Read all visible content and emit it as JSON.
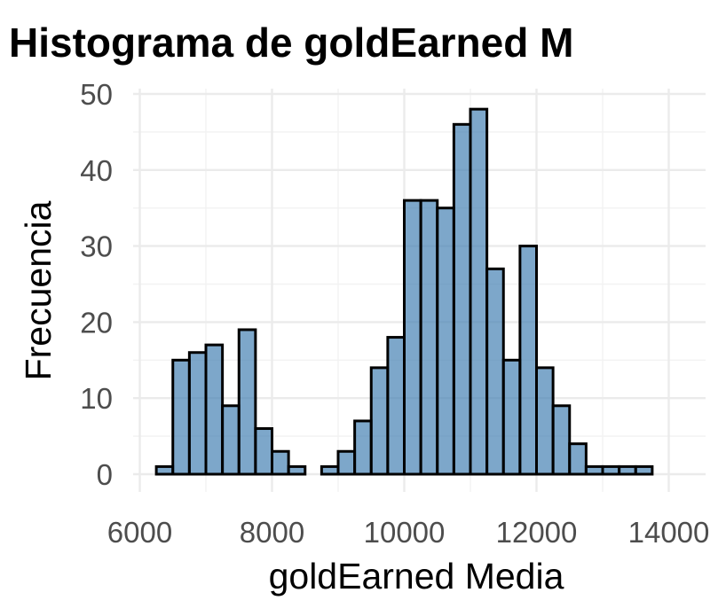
{
  "chart_data": {
    "type": "bar",
    "title": "Histograma de goldEarned M",
    "xlabel": "goldEarned Media",
    "ylabel": "Frecuencia",
    "xlim": [
      6000,
      14400
    ],
    "ylim": [
      0,
      50
    ],
    "x_ticks": [
      "6000",
      "8000",
      "10000",
      "12000",
      "14000"
    ],
    "x_tick_values": [
      6000,
      8000,
      10000,
      12000,
      14000
    ],
    "y_ticks": [
      "0",
      "10",
      "20",
      "30",
      "40",
      "50"
    ],
    "y_tick_values": [
      0,
      10,
      20,
      30,
      40,
      50
    ],
    "grid": true,
    "bar_fill": "#4682b4",
    "bar_outline": "#000000",
    "bins": [
      {
        "start": 6250,
        "end": 6500,
        "count": 1
      },
      {
        "start": 6500,
        "end": 6750,
        "count": 15
      },
      {
        "start": 6750,
        "end": 7000,
        "count": 16
      },
      {
        "start": 7000,
        "end": 7250,
        "count": 17
      },
      {
        "start": 7250,
        "end": 7500,
        "count": 9
      },
      {
        "start": 7500,
        "end": 7750,
        "count": 19
      },
      {
        "start": 7750,
        "end": 8000,
        "count": 6
      },
      {
        "start": 8000,
        "end": 8250,
        "count": 3
      },
      {
        "start": 8250,
        "end": 8500,
        "count": 1
      },
      {
        "start": 8500,
        "end": 8750,
        "count": 0
      },
      {
        "start": 8750,
        "end": 9000,
        "count": 1
      },
      {
        "start": 9000,
        "end": 9250,
        "count": 3
      },
      {
        "start": 9250,
        "end": 9500,
        "count": 7
      },
      {
        "start": 9500,
        "end": 9750,
        "count": 14
      },
      {
        "start": 9750,
        "end": 10000,
        "count": 18
      },
      {
        "start": 10000,
        "end": 10250,
        "count": 36
      },
      {
        "start": 10250,
        "end": 10500,
        "count": 36
      },
      {
        "start": 10500,
        "end": 10750,
        "count": 35
      },
      {
        "start": 10750,
        "end": 11000,
        "count": 46
      },
      {
        "start": 11000,
        "end": 11250,
        "count": 48
      },
      {
        "start": 11250,
        "end": 11500,
        "count": 27
      },
      {
        "start": 11500,
        "end": 11750,
        "count": 15
      },
      {
        "start": 11750,
        "end": 12000,
        "count": 30
      },
      {
        "start": 12000,
        "end": 12250,
        "count": 14
      },
      {
        "start": 12250,
        "end": 12500,
        "count": 9
      },
      {
        "start": 12500,
        "end": 12750,
        "count": 4
      },
      {
        "start": 12750,
        "end": 13000,
        "count": 1
      },
      {
        "start": 13000,
        "end": 13250,
        "count": 1
      },
      {
        "start": 13250,
        "end": 13500,
        "count": 1
      },
      {
        "start": 13500,
        "end": 13750,
        "count": 1
      }
    ]
  }
}
